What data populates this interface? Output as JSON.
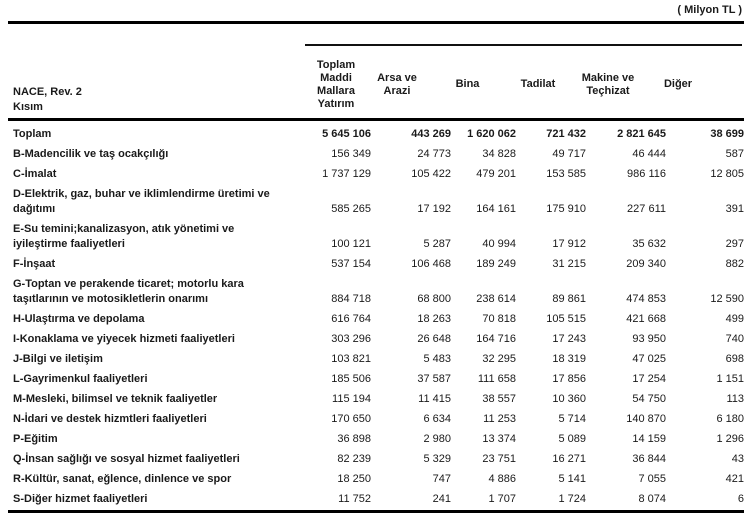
{
  "unit_label": "( Milyon TL )",
  "colors": {
    "text": "#1a1a1a",
    "rule": "#000000",
    "background": "#ffffff"
  },
  "table": {
    "row_header_label": "NACE, Rev. 2\nKısım",
    "columns": [
      {
        "label": "Toplam\nMaddi\nMallara\nYatırım"
      },
      {
        "label": "Arsa ve\nArazi"
      },
      {
        "label": "Bina"
      },
      {
        "label": "Tadilat"
      },
      {
        "label": "Makine ve\nTeçhizat"
      },
      {
        "label": "Diğer"
      }
    ],
    "rows": [
      {
        "label": "Toplam",
        "is_total": true,
        "values": [
          "5 645 106",
          "443 269",
          "1 620 062",
          "721 432",
          "2 821 645",
          "38 699"
        ]
      },
      {
        "label": "B-Madencilik ve taş ocakçılığı",
        "values": [
          "156 349",
          "24 773",
          "34 828",
          "49 717",
          "46 444",
          "587"
        ]
      },
      {
        "label": "C-İmalat",
        "values": [
          "1 737 129",
          "105 422",
          "479 201",
          "153 585",
          "986 116",
          "12 805"
        ]
      },
      {
        "label": "D-Elektrik, gaz, buhar ve iklimlendirme üretimi ve\ndağıtımı",
        "values": [
          "585 265",
          "17 192",
          "164 161",
          "175 910",
          "227 611",
          "391"
        ]
      },
      {
        "label": "E-Su temini;kanalizasyon, atık yönetimi ve\niyileştirme faaliyetleri",
        "values": [
          "100 121",
          "5 287",
          "40 994",
          "17 912",
          "35 632",
          "297"
        ]
      },
      {
        "label": "F-İnşaat",
        "values": [
          "537 154",
          "106 468",
          "189 249",
          "31 215",
          "209 340",
          "882"
        ]
      },
      {
        "label": "G-Toptan ve perakende ticaret; motorlu kara\ntaşıtlarının ve motosikletlerin onarımı",
        "values": [
          "884 718",
          "68 800",
          "238 614",
          "89 861",
          "474 853",
          "12 590"
        ]
      },
      {
        "label": "H-Ulaştırma ve depolama",
        "values": [
          "616 764",
          "18 263",
          "70 818",
          "105 515",
          "421 668",
          "499"
        ]
      },
      {
        "label": "I-Konaklama ve yiyecek hizmeti faaliyetleri",
        "values": [
          "303 296",
          "26 648",
          "164 716",
          "17 243",
          "93 950",
          "740"
        ]
      },
      {
        "label": "J-Bilgi ve iletişim",
        "values": [
          "103 821",
          "5 483",
          "32 295",
          "18 319",
          "47 025",
          "698"
        ]
      },
      {
        "label": "L-Gayrimenkul faaliyetleri",
        "values": [
          "185 506",
          "37 587",
          "111 658",
          "17 856",
          "17 254",
          "1 151"
        ]
      },
      {
        "label": "M-Mesleki, bilimsel ve teknik faaliyetler",
        "values": [
          "115 194",
          "11 415",
          "38 557",
          "10 360",
          "54 750",
          "113"
        ]
      },
      {
        "label": "N-İdari ve destek hizmtleri faaliyetleri",
        "values": [
          "170 650",
          "6 634",
          "11 253",
          "5 714",
          "140 870",
          "6 180"
        ]
      },
      {
        "label": "P-Eğitim",
        "values": [
          "36 898",
          "2 980",
          "13 374",
          "5 089",
          "14 159",
          "1 296"
        ]
      },
      {
        "label": "Q-İnsan sağlığı ve sosyal hizmet faaliyetleri",
        "values": [
          "82 239",
          "5 329",
          "23 751",
          "16 271",
          "36 844",
          "43"
        ]
      },
      {
        "label": "R-Kültür, sanat, eğlence, dinlence ve spor",
        "values": [
          "18 250",
          "747",
          "4 886",
          "5 141",
          "7 055",
          "421"
        ]
      },
      {
        "label": "S-Diğer hizmet faaliyetleri",
        "values": [
          "11 752",
          "241",
          "1 707",
          "1 724",
          "8 074",
          "6"
        ]
      }
    ]
  }
}
